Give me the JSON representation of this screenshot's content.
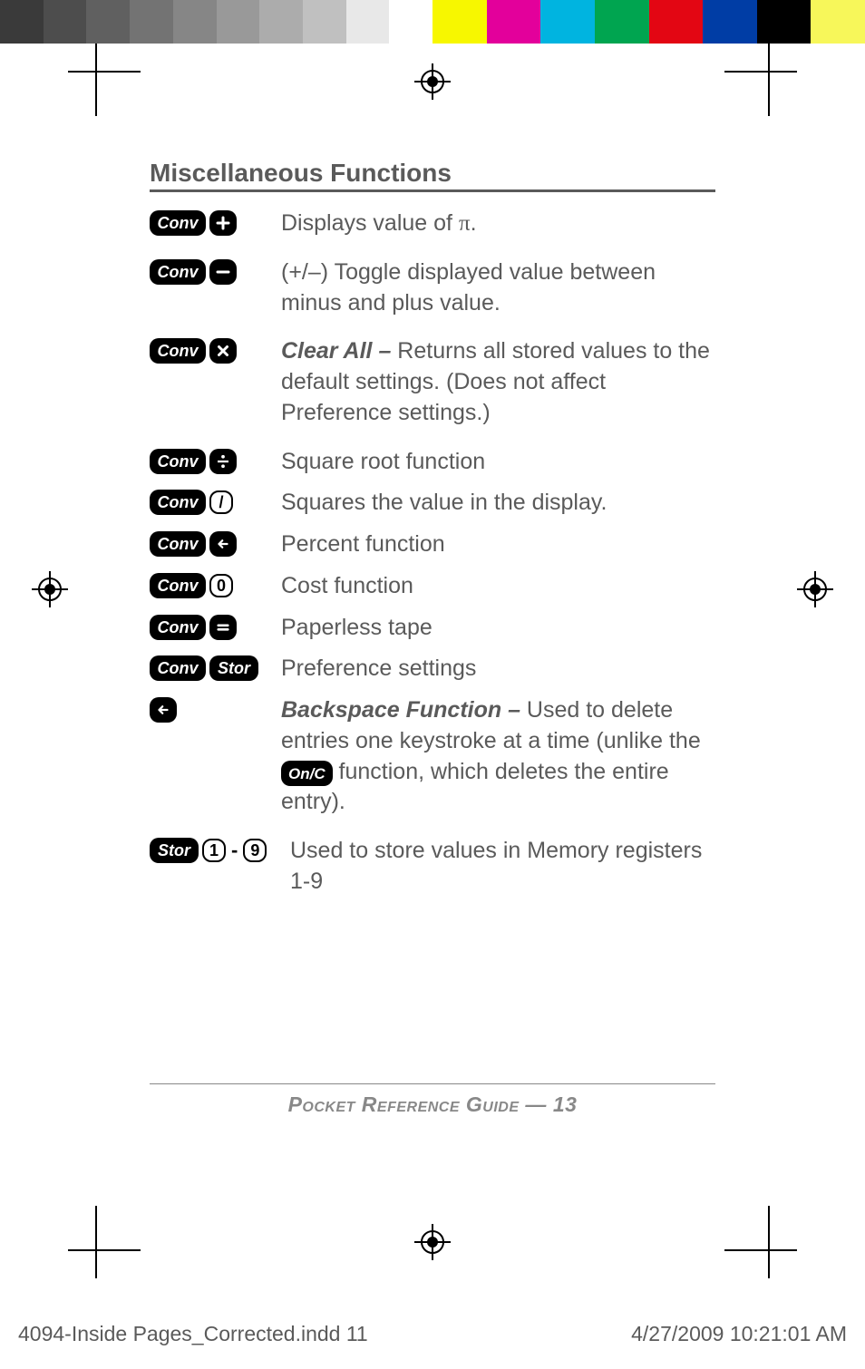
{
  "color_bar": {
    "grays": [
      "#3a3a3a",
      "#4d4d4d",
      "#606060",
      "#737373",
      "#868686",
      "#999999",
      "#acacac",
      "#c0c0c0",
      "#e8e8e8",
      "#ffffff"
    ],
    "colors": [
      "#f7f700",
      "#e3009b",
      "#00b4e0",
      "#00a550",
      "#e30613",
      "#003da5",
      "#000000",
      "#f7f75a"
    ]
  },
  "heading": "Miscellaneous Functions",
  "labels": {
    "conv": "Conv",
    "stor": "Stor",
    "onc": "On/C"
  },
  "rows": [
    {
      "id": "pi",
      "desc_html": "Displays value of <span class='pi'>π</span>."
    },
    {
      "id": "toggle",
      "desc_html": "(+/–) Toggle displayed value between minus and plus value."
    },
    {
      "id": "clearall",
      "desc_html": "<b>Clear All –</b> Returns all stored values to the default settings. (Does not affect Preference settings.)"
    },
    {
      "id": "sqrt",
      "desc_html": "Square root function"
    },
    {
      "id": "square",
      "desc_html": "Squares the value in the display."
    },
    {
      "id": "percent",
      "desc_html": "Percent function"
    },
    {
      "id": "cost",
      "desc_html": "Cost function"
    },
    {
      "id": "paperless",
      "desc_html": "Paperless tape"
    },
    {
      "id": "prefs",
      "desc_html": "Preference settings"
    },
    {
      "id": "backspace",
      "desc_html": "<b>Backspace Function –</b> Used to delete entries one keystroke at a time (unlike the <span class='key onc'>On/C</span> function, which deletes the entire entry)."
    },
    {
      "id": "memory",
      "desc_html": "Used to store values in Memory registers 1-9"
    }
  ],
  "outline_keys": {
    "zero": "0",
    "one": "1",
    "nine": "9",
    "slash": "/"
  },
  "footer": {
    "title_prefix": "Pocket Reference Guide — ",
    "page_number": "13"
  },
  "slug": {
    "filename": "4094-Inside Pages_Corrected.indd   11",
    "datetime": "4/27/2009   10:21:01 AM"
  }
}
